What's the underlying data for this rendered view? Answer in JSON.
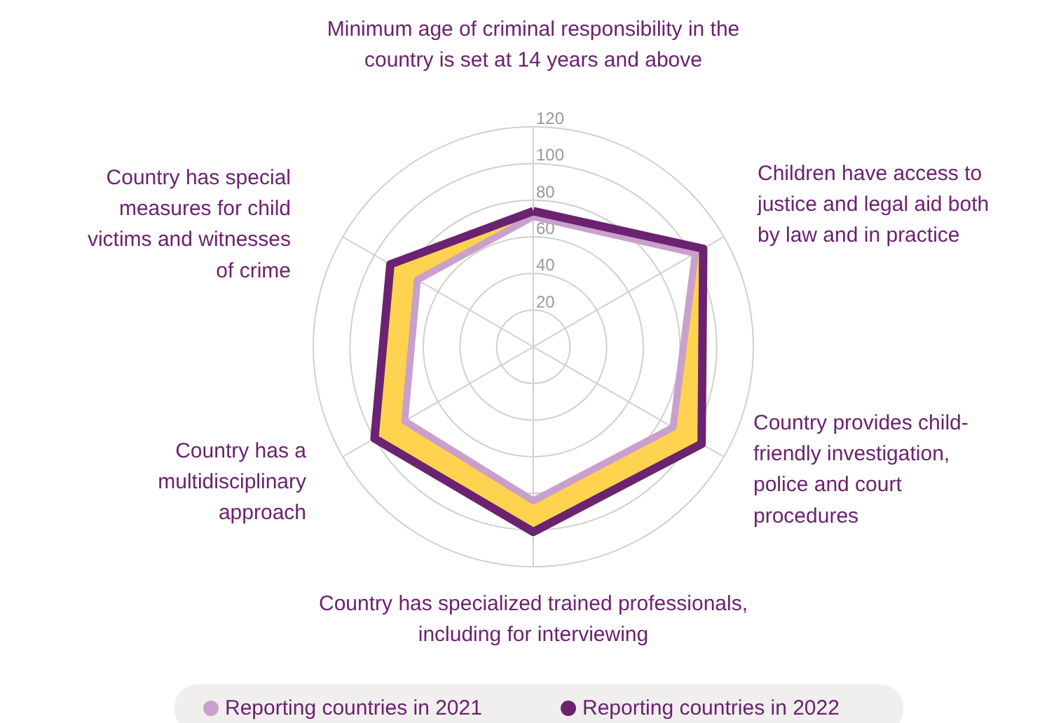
{
  "chart_data": {
    "type": "radar",
    "categories": [
      "Minimum age of criminal responsibility in the country is set at 14 years and above",
      "Children have access to justice and legal aid both by law and in practice",
      "Country provides child-friendly investigation, police and court procedures",
      "Country has specialized trained professionals, including for interviewing",
      "Country has a multidisciplinary approach",
      "Country has special measures for child victims and witnesses of crime"
    ],
    "series": [
      {
        "name": "Reporting countries in 2021",
        "color": "#c9a0cc",
        "values": [
          71,
          102,
          88,
          84,
          81,
          73
        ]
      },
      {
        "name": "Reporting countries in 2022",
        "color": "#6b2270",
        "values": [
          74,
          107,
          106,
          101,
          100,
          90
        ]
      }
    ],
    "ylim": [
      0,
      120
    ],
    "yticks": [
      20,
      40,
      60,
      80,
      100,
      120
    ],
    "grid": true,
    "legend": "bottom"
  }
}
